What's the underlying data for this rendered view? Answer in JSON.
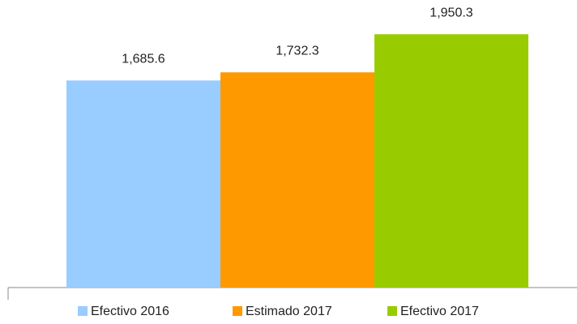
{
  "chart_data": {
    "type": "bar",
    "categories": [
      null
    ],
    "series": [
      {
        "name": "Efectivo 2016",
        "color": "#99ccff",
        "values": [
          1685.6
        ],
        "value_labels": [
          "1,685.6"
        ]
      },
      {
        "name": "Estimado 2017",
        "color": "#ff9900",
        "values": [
          1732.3
        ],
        "value_labels": [
          "1,732.3"
        ]
      },
      {
        "name": "Efectivo 2017",
        "color": "#99cc00",
        "values": [
          1950.3
        ],
        "value_labels": [
          "1,950.3"
        ]
      }
    ],
    "ylim": [
      500,
      2100
    ],
    "legend": "bottom"
  }
}
